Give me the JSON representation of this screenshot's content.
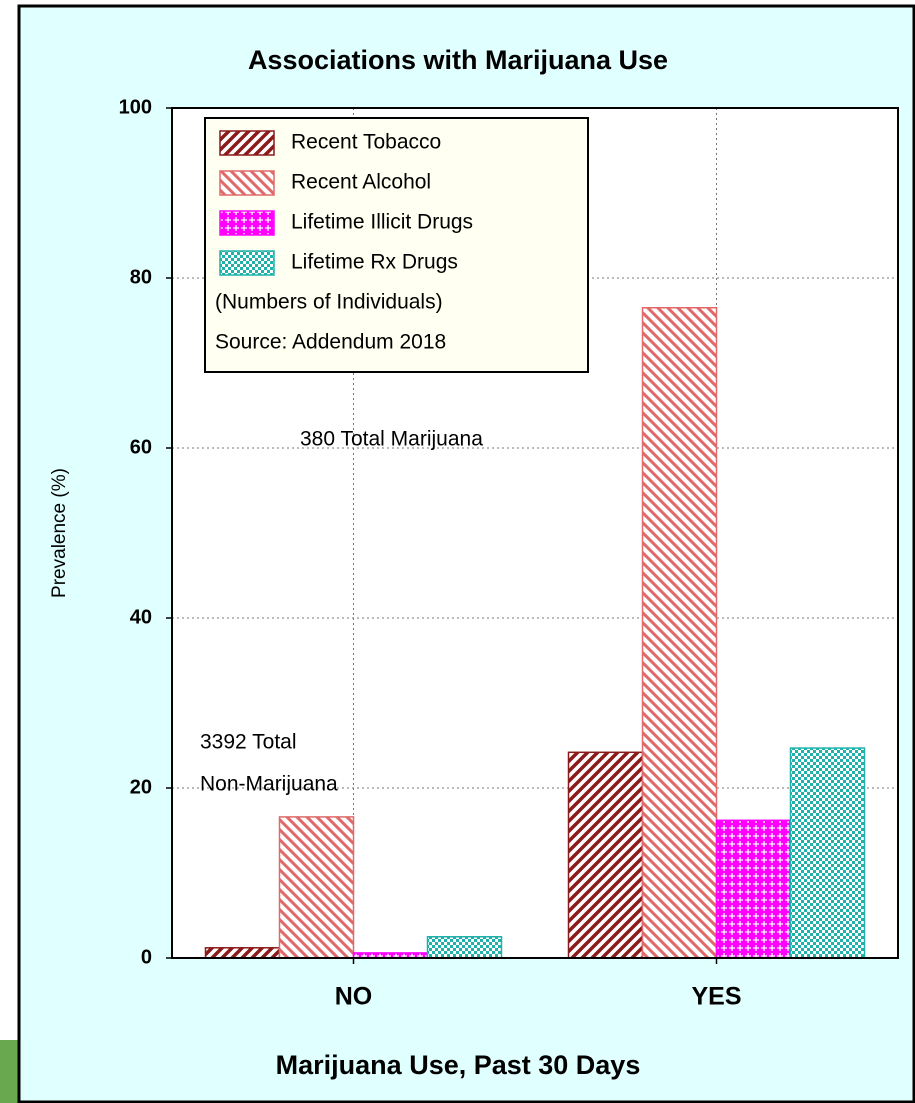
{
  "chart_data": {
    "type": "bar",
    "title": "Associations with Marijuana Use",
    "x_label": "Marijuana Use, Past 30 Days",
    "y_label": "Prevalence (%)",
    "categories": [
      "NO",
      "YES"
    ],
    "series": [
      {
        "name": "Recent Tobacco",
        "color": "#8b1a1a",
        "values": [
          1.2,
          24.2
        ]
      },
      {
        "name": "Recent Alcohol",
        "color": "#e06a6a",
        "values": [
          16.6,
          76.5
        ]
      },
      {
        "name": "Lifetime Illicit Drugs",
        "color": "#ff00ff",
        "values": [
          0.6,
          16.2
        ]
      },
      {
        "name": "Lifetime Rx Drugs",
        "color": "#20b2aa",
        "values": [
          2.5,
          24.7
        ]
      }
    ],
    "legend_notes": [
      "(Numbers of Individuals)",
      "Source: Addendum 2018"
    ],
    "annotations": [
      "380 Total Marijuana",
      "3392 Total",
      "Non-Marijuana"
    ],
    "ylim": [
      0,
      100
    ],
    "yticks": [
      0,
      20,
      40,
      60,
      80,
      100
    ],
    "grid": true,
    "legend": "upper left"
  }
}
